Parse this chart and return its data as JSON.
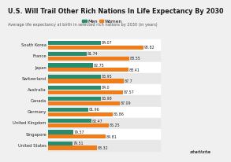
{
  "title": "U.S. Will Trail Other Rich Nations In Life Expectancy By 2030",
  "subtitle": "Average life expectancy at birth in selected rich nations by 2030 (in years)",
  "countries": [
    "South Korea",
    "France",
    "Japan",
    "Switzerland",
    "Australia",
    "Canada",
    "Germany",
    "United Kingdom",
    "Singapore",
    "United States"
  ],
  "men": [
    84.07,
    81.74,
    82.75,
    83.95,
    84.0,
    83.98,
    81.96,
    82.47,
    79.57,
    79.51
  ],
  "women": [
    90.82,
    88.55,
    88.41,
    87.7,
    87.57,
    87.09,
    85.86,
    85.25,
    84.81,
    83.32
  ],
  "men_color": "#2a8c6e",
  "women_color": "#f07d1a",
  "bg_color": "#f0f0f0",
  "row_bg_even": "#ffffff",
  "row_bg_odd": "#e8e8e8",
  "title_color": "#1a1a1a",
  "subtitle_color": "#555555",
  "value_color": "#222222",
  "label_color": "#222222",
  "xmin": 75.5,
  "xmax": 93.5,
  "title_fontsize": 5.8,
  "subtitle_fontsize": 3.6,
  "label_fontsize": 3.8,
  "value_fontsize": 3.4,
  "legend_fontsize": 4.2
}
